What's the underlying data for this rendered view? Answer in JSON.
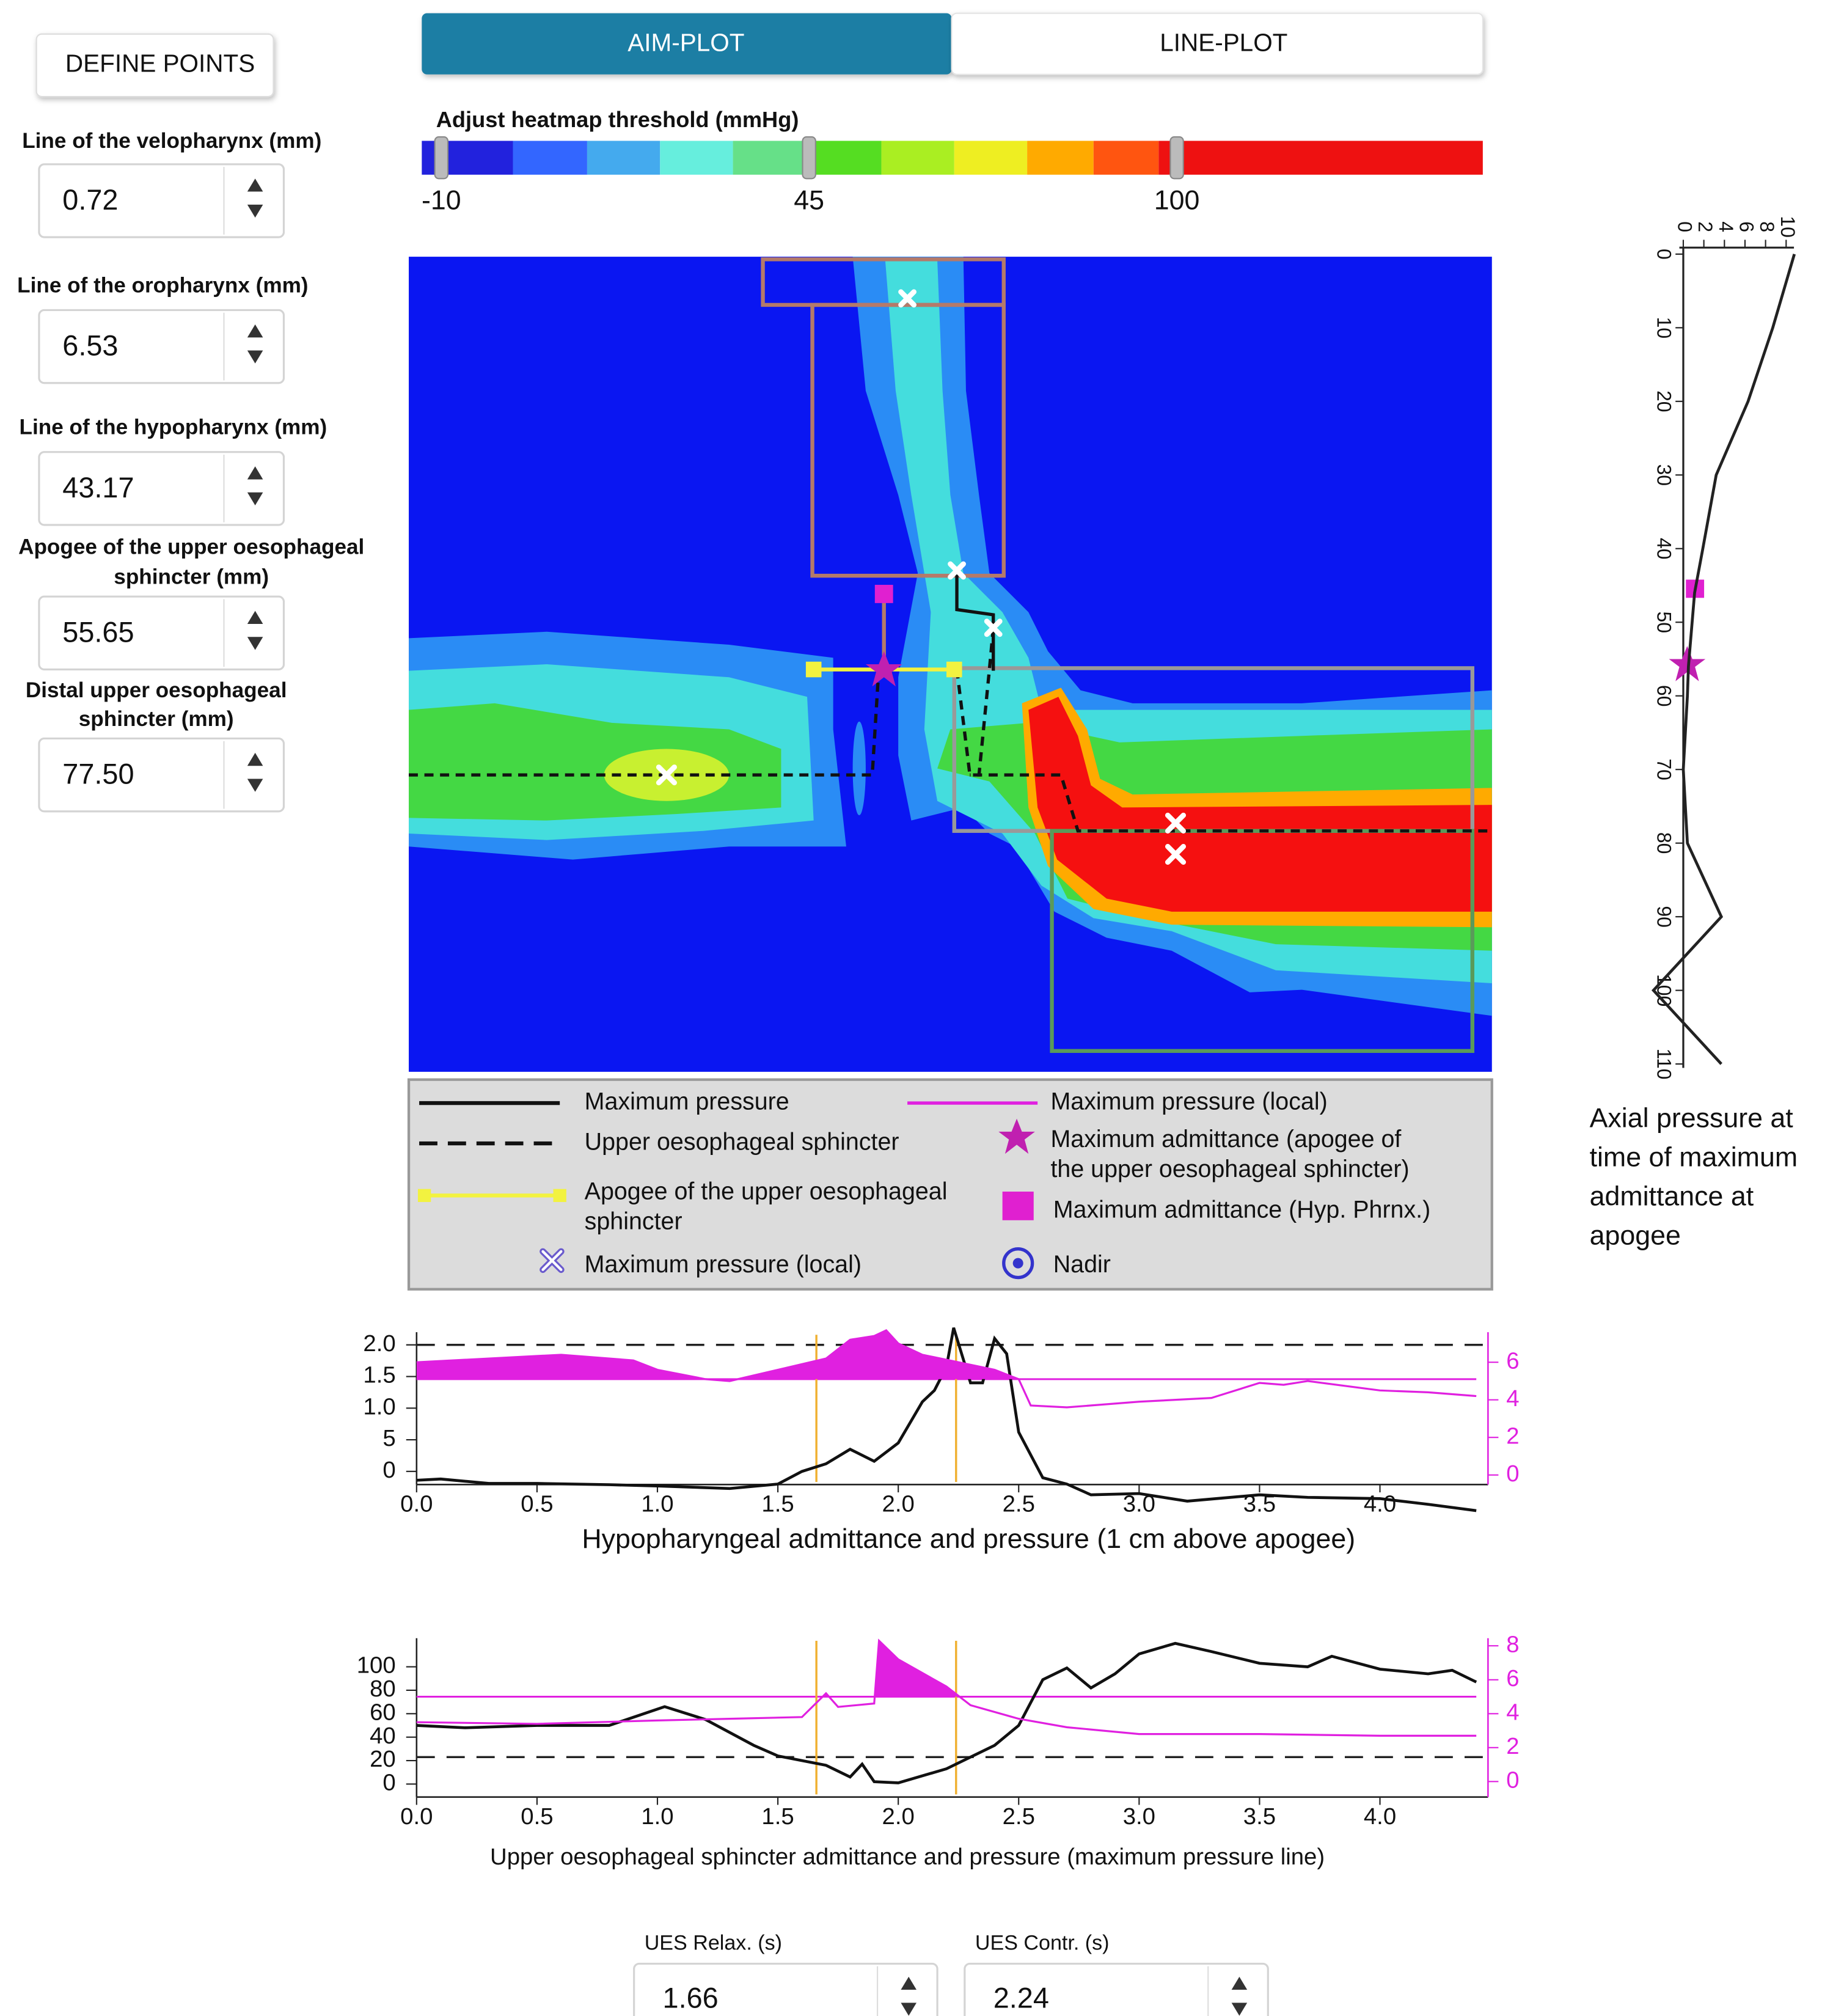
{
  "define_points": "DEFINE POINTS",
  "tabs": [
    "AIM-PLOT",
    "LINE-PLOT"
  ],
  "fields": [
    {
      "label_lines": [
        "Line of the velopharynx (mm)"
      ],
      "value": "0.72"
    },
    {
      "label_lines": [
        "Line of the oropharynx (mm)"
      ],
      "value": "6.53"
    },
    {
      "label_lines": [
        "Line of the hypopharynx (mm)"
      ],
      "value": "43.17"
    },
    {
      "label_lines": [
        "Apogee of the upper oesophageal",
        "sphincter (mm)"
      ],
      "value": "55.65"
    },
    {
      "label_lines": [
        "Distal upper oesophageal",
        "sphincter (mm)"
      ],
      "value": "77.50"
    }
  ],
  "heatmap_threshold": {
    "label": "Adjust heatmap threshold (mmHg)",
    "values": [
      -10,
      45,
      100
    ]
  },
  "legend": [
    {
      "lines": [
        "Maximum pressure"
      ]
    },
    {
      "lines": [
        "Upper oesophageal sphincter"
      ]
    },
    {
      "lines": [
        "Apogee of the upper oesophageal",
        "sphincter"
      ]
    },
    {
      "lines": [
        "Maximum pressure (local)"
      ]
    },
    {
      "lines": [
        "Maximum pressure (local)"
      ]
    },
    {
      "lines": [
        "Maximum admittance (apogee of",
        "the upper oesophageal sphincter)"
      ]
    },
    {
      "lines": [
        "Maximum admittance (Hyp. Phrnx.)"
      ]
    },
    {
      "lines": [
        "Nadir"
      ]
    }
  ],
  "axial_plot": {
    "type": "line",
    "caption_lines": [
      "Axial pressure at",
      "time of maximum",
      "admittance at",
      "apogee"
    ],
    "depth_lim": [
      0,
      110
    ],
    "depth_ticks": [
      0,
      10,
      20,
      30,
      40,
      50,
      60,
      70,
      80,
      90,
      100,
      110
    ],
    "pressure_lim": [
      0,
      10
    ],
    "pressure_ticks": [
      0,
      2,
      4,
      6,
      8,
      10
    ],
    "depth": [
      0,
      10,
      20,
      30,
      40,
      46,
      56,
      60,
      70,
      80,
      90,
      100,
      110
    ],
    "pressure": [
      10.8,
      8.7,
      6.3,
      3.2,
      1.9,
      1.1,
      0.5,
      0.4,
      0,
      0.4,
      3.7,
      -2.9,
      3.7
    ],
    "color": "#222222"
  },
  "chart_data": [
    {
      "type": "line",
      "title": "Hypopharyngeal admittance and pressure (1 cm above apogee)",
      "xlim": [
        0,
        4.4
      ],
      "xticks": [
        {
          "value": 0,
          "label": "0.0"
        },
        0.5,
        {
          "value": 1,
          "label": "1.0"
        },
        1.5,
        {
          "value": 2,
          "label": "2.0"
        },
        2.5,
        {
          "value": 3,
          "label": "3.0"
        },
        3.5,
        {
          "value": 4,
          "label": "4.0"
        }
      ],
      "ylim": [
        -6.5,
        22
      ],
      "yticks": [
        {
          "value": 20,
          "label": "2.0"
        },
        {
          "value": 15,
          "label": "1.5"
        },
        {
          "value": 10,
          "label": "1.0"
        },
        5,
        0
      ],
      "y2lim": [
        -2,
        7.6
      ],
      "y2ticks": [
        0,
        2,
        4,
        6
      ],
      "y2color": "#e020e0",
      "reference_lines": [
        {
          "axis": "y",
          "value": 20,
          "dashed": true,
          "color": "#222222"
        },
        {
          "axis": "y2",
          "value": 5.1,
          "dashed": false,
          "color": "#e020e0"
        }
      ],
      "marker_color": "#f0b030",
      "series": [
        {
          "color": "#111111",
          "x": [
            0,
            0.1,
            0.3,
            0.5,
            0.8,
            1.0,
            1.3,
            1.5,
            1.6,
            1.7,
            1.8,
            1.9,
            2.0,
            2.1,
            2.15,
            2.2,
            2.23,
            2.3,
            2.35,
            2.4,
            2.45,
            2.5,
            2.6,
            2.7,
            2.8,
            3.0,
            3.2,
            3.5,
            3.7,
            4.0,
            4.2,
            4.4
          ],
          "values": [
            -1.4,
            -1.2,
            -1.9,
            -1.9,
            -2.1,
            -2.3,
            -2.7,
            -2,
            0,
            1.2,
            3.5,
            1.6,
            4.5,
            11,
            12.8,
            16.5,
            22.7,
            14,
            14,
            21,
            18.6,
            6.2,
            -1,
            -2,
            -3.7,
            -3.5,
            -4.7,
            -3.7,
            -4.1,
            -4.3,
            -5.2,
            -6.2
          ]
        },
        {
          "color": "#e020e0",
          "axis": "y2",
          "fill_above_reference": true,
          "x": [
            0,
            0.3,
            0.6,
            0.9,
            1.0,
            1.2,
            1.3,
            1.5,
            1.7,
            1.8,
            1.9,
            1.95,
            2.0,
            2.1,
            2.25,
            2.4,
            2.5,
            2.55,
            2.7,
            3.0,
            3.3,
            3.5,
            3.6,
            3.7,
            4.0,
            4.2,
            4.4
          ],
          "values": [
            6.0,
            6.2,
            6.4,
            6.1,
            5.6,
            5.1,
            5.0,
            5.6,
            6.2,
            7.2,
            7.4,
            7.7,
            7.0,
            6.4,
            6.0,
            5.6,
            5.1,
            3.7,
            3.6,
            3.9,
            4.1,
            4.9,
            4.8,
            5.0,
            4.5,
            4.4,
            4.2
          ]
        }
      ]
    },
    {
      "type": "line",
      "title": "Upper oesophageal sphincter admittance and pressure (maximum pressure line)",
      "xlim": [
        0,
        4.4
      ],
      "xticks": [
        {
          "value": 0,
          "label": "0.0"
        },
        0.5,
        {
          "value": 1,
          "label": "1.0"
        },
        1.5,
        {
          "value": 2,
          "label": "2.0"
        },
        2.5,
        {
          "value": 3,
          "label": "3.0"
        },
        3.5,
        {
          "value": 4,
          "label": "4.0"
        }
      ],
      "ylim": [
        -2.2,
        124.4
      ],
      "yticks": [
        0,
        20,
        40,
        60,
        80,
        100
      ],
      "y2lim": [
        -0.3,
        8.45
      ],
      "y2ticks": [
        0,
        2,
        4,
        6,
        8
      ],
      "y2color": "#e020e0",
      "reference_lines": [
        {
          "axis": "y",
          "value": 23,
          "dashed": true,
          "color": "#222222"
        },
        {
          "axis": "y2",
          "value": 5.0,
          "dashed": false,
          "color": "#e020e0"
        }
      ],
      "marker_color": "#f0b030",
      "series": [
        {
          "color": "#111111",
          "x": [
            0,
            0.2,
            0.5,
            0.8,
            1.03,
            1.2,
            1.4,
            1.5,
            1.7,
            1.8,
            1.85,
            1.9,
            2.0,
            2.2,
            2.4,
            2.5,
            2.6,
            2.7,
            2.8,
            2.9,
            3.0,
            3.15,
            3.3,
            3.5,
            3.7,
            3.8,
            4.0,
            4.2,
            4.3,
            4.4
          ],
          "values": [
            50,
            48,
            50,
            50,
            66,
            55,
            33,
            24,
            16,
            6,
            17,
            2,
            1,
            13,
            33,
            50,
            89,
            99,
            82,
            94,
            111,
            120,
            113,
            103,
            100,
            109,
            98,
            94,
            97,
            87
          ]
        },
        {
          "color": "#e020e0",
          "axis": "y2",
          "fill_above_reference": true,
          "x": [
            0,
            0.5,
            1.0,
            1.3,
            1.6,
            1.7,
            1.75,
            1.9,
            1.92,
            2.0,
            2.2,
            2.3,
            2.5,
            2.7,
            3.0,
            3.5,
            4.0,
            4.4
          ],
          "values": [
            3.5,
            3.4,
            3.6,
            3.7,
            3.8,
            5.2,
            4.4,
            4.6,
            8.3,
            7.2,
            5.6,
            4.5,
            3.7,
            3.2,
            2.8,
            2.8,
            2.7,
            2.7
          ]
        }
      ]
    }
  ],
  "ues_fields": [
    {
      "label": "UES Relax. (s)",
      "value": 1.66
    },
    {
      "label": "UES Contr. (s)",
      "value": 2.24
    }
  ]
}
